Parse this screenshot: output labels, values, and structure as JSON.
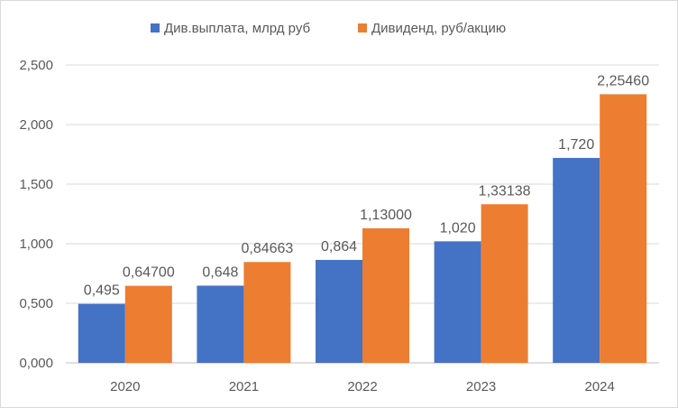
{
  "chart_data": {
    "type": "bar",
    "categories": [
      "2020",
      "2021",
      "2022",
      "2023",
      "2024"
    ],
    "series": [
      {
        "name": "Див.выплата, млрд руб",
        "color": "#4472C4",
        "values": [
          0.495,
          0.648,
          0.864,
          1.02,
          1.72
        ],
        "labels": [
          "0,495",
          "0,648",
          "0,864",
          "1,020",
          "1,720"
        ]
      },
      {
        "name": "Дивиденд, руб/акцию",
        "color": "#ED7D31",
        "values": [
          0.647,
          0.84663,
          1.13,
          1.33138,
          2.2546
        ],
        "labels": [
          "0,64700",
          "0,84663",
          "1,13000",
          "1,33138",
          "2,25460"
        ]
      }
    ],
    "yticks": [
      0,
      0.5,
      1.0,
      1.5,
      2.0,
      2.5
    ],
    "ytick_labels": [
      "0,000",
      "0,500",
      "1,000",
      "1,500",
      "2,000",
      "2,500"
    ],
    "ylim": [
      0,
      2.5
    ],
    "grid": true,
    "legend": "top",
    "title": "",
    "xlabel": "",
    "ylabel": ""
  }
}
